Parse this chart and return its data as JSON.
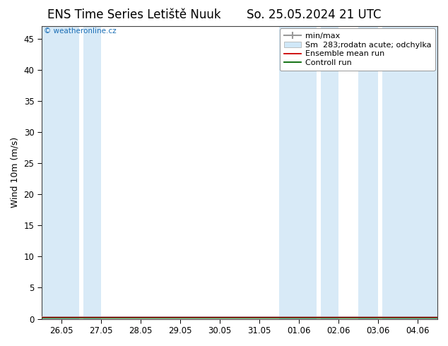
{
  "title_left": "ENS Time Series Letiště Nuuk",
  "title_right": "So. 25.05.2024 21 UTC",
  "ylabel": "Wind 10m (m/s)",
  "ylim": [
    0,
    47
  ],
  "yticks": [
    0,
    5,
    10,
    15,
    20,
    25,
    30,
    35,
    40,
    45
  ],
  "x_tick_positions": [
    0,
    1,
    2,
    3,
    4,
    5,
    6,
    7,
    8,
    9
  ],
  "x_tick_labels": [
    "26.05",
    "27.05",
    "28.05",
    "29.05",
    "30.05",
    "31.05",
    "01.06",
    "02.06",
    "03.06",
    "04.06"
  ],
  "xlim": [
    -0.5,
    9.5
  ],
  "shaded_bands": [
    [
      -0.5,
      0.45
    ],
    [
      0.55,
      1.0
    ],
    [
      5.5,
      6.45
    ],
    [
      6.55,
      7.0
    ],
    [
      7.5,
      8.0
    ],
    [
      8.1,
      9.5
    ]
  ],
  "shade_color": "#d8eaf7",
  "background_color": "#ffffff",
  "watermark": "© weatheronline.cz",
  "watermark_color": "#1a6eb5",
  "legend_labels": [
    "min/max",
    "Sm  283;rodatn acute; odchylka",
    "Ensemble mean run",
    "Controll run"
  ],
  "legend_colors": [
    "#999999",
    "#c8dff0",
    "#cc0000",
    "#006600"
  ],
  "title_fontsize": 12,
  "axis_label_fontsize": 9,
  "tick_fontsize": 8.5,
  "legend_fontsize": 8
}
